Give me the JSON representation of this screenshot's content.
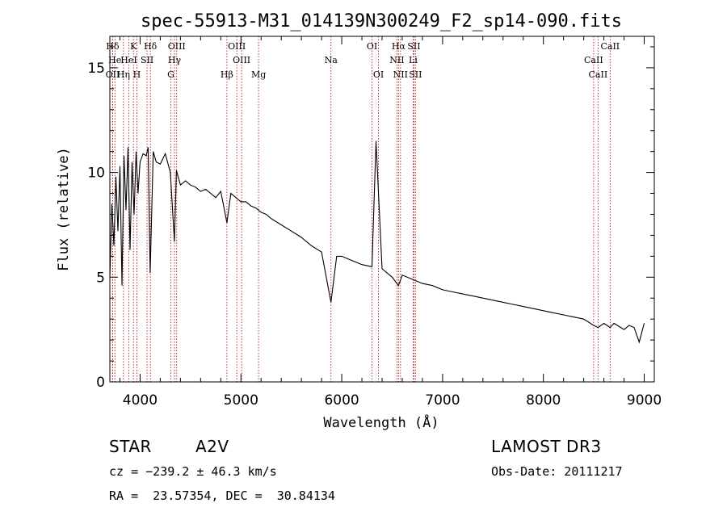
{
  "chart_data": {
    "type": "line",
    "title": "spec-55913-M31_014139N300249_F2_sp14-090.fits",
    "xlabel": "Wavelength (Å)",
    "ylabel": "Flux (relative)",
    "xlim": [
      3700,
      9100
    ],
    "ylim": [
      0,
      16.5
    ],
    "xticks": [
      4000,
      5000,
      6000,
      7000,
      8000,
      9000
    ],
    "yticks": [
      0,
      5,
      10,
      15
    ],
    "grid": false,
    "series": [
      {
        "name": "spectrum",
        "x": [
          3700,
          3720,
          3740,
          3760,
          3780,
          3800,
          3820,
          3840,
          3860,
          3880,
          3900,
          3920,
          3940,
          3960,
          3980,
          4000,
          4030,
          4060,
          4080,
          4100,
          4130,
          4160,
          4200,
          4250,
          4300,
          4340,
          4360,
          4400,
          4450,
          4500,
          4550,
          4600,
          4650,
          4700,
          4750,
          4800,
          4861,
          4900,
          4950,
          5000,
          5050,
          5100,
          5150,
          5200,
          5250,
          5300,
          5400,
          5500,
          5600,
          5700,
          5800,
          5893,
          5950,
          6000,
          6100,
          6200,
          6300,
          6340,
          6400,
          6500,
          6563,
          6600,
          6700,
          6800,
          6900,
          7000,
          7100,
          7200,
          7300,
          7400,
          7500,
          7600,
          7700,
          7800,
          7900,
          8000,
          8100,
          8200,
          8300,
          8400,
          8498,
          8542,
          8600,
          8662,
          8700,
          8800,
          8850,
          8900,
          8950,
          9000
        ],
        "y": [
          5.0,
          8.5,
          6.5,
          9.8,
          7.2,
          10.3,
          4.6,
          10.8,
          8.2,
          11.2,
          6.3,
          10.5,
          8.0,
          11.0,
          9.0,
          10.5,
          10.9,
          10.8,
          11.2,
          5.2,
          11.0,
          10.5,
          10.4,
          10.9,
          10.0,
          6.7,
          10.1,
          9.4,
          9.6,
          9.4,
          9.3,
          9.1,
          9.2,
          9.0,
          8.8,
          9.1,
          7.6,
          9.0,
          8.8,
          8.6,
          8.6,
          8.4,
          8.3,
          8.1,
          8.0,
          7.8,
          7.5,
          7.2,
          6.9,
          6.5,
          6.2,
          3.8,
          6.0,
          6.0,
          5.8,
          5.6,
          5.5,
          11.5,
          5.4,
          5.0,
          4.6,
          5.1,
          4.9,
          4.7,
          4.6,
          4.4,
          4.3,
          4.2,
          4.1,
          4.0,
          3.9,
          3.8,
          3.7,
          3.6,
          3.5,
          3.4,
          3.3,
          3.2,
          3.1,
          3.0,
          2.7,
          2.6,
          2.8,
          2.6,
          2.8,
          2.5,
          2.7,
          2.6,
          1.9,
          2.8
        ]
      }
    ],
    "lines": [
      {
        "label": "Hδ",
        "x": 3727,
        "row": 1
      },
      {
        "label": "OII",
        "x": 3728,
        "row": 3
      },
      {
        "label": "He",
        "x": 3750,
        "row": 2
      },
      {
        "label": "Hη",
        "x": 3835,
        "row": 3
      },
      {
        "label": "K",
        "x": 3934,
        "row": 1
      },
      {
        "label": "HeI",
        "x": 3888,
        "row": 2
      },
      {
        "label": "H",
        "x": 3968,
        "row": 3
      },
      {
        "label": "SII",
        "x": 4069,
        "row": 2
      },
      {
        "label": "Hδ",
        "x": 4102,
        "row": 1
      },
      {
        "label": "OIII",
        "x": 4363,
        "row": 1
      },
      {
        "label": "Hγ",
        "x": 4341,
        "row": 2
      },
      {
        "label": "G",
        "x": 4305,
        "row": 3
      },
      {
        "label": "Hβ",
        "x": 4861,
        "row": 3
      },
      {
        "label": "OIII",
        "x": 4959,
        "row": 1
      },
      {
        "label": "OIII",
        "x": 5007,
        "row": 2
      },
      {
        "label": "Mg",
        "x": 5175,
        "row": 3
      },
      {
        "label": "Na",
        "x": 5893,
        "row": 2
      },
      {
        "label": "OI",
        "x": 6300,
        "row": 1
      },
      {
        "label": "OI",
        "x": 6364,
        "row": 3
      },
      {
        "label": "Hα",
        "x": 6563,
        "row": 1
      },
      {
        "label": "NII",
        "x": 6548,
        "row": 2
      },
      {
        "label": "NII",
        "x": 6583,
        "row": 3
      },
      {
        "label": "SII",
        "x": 6716,
        "row": 1
      },
      {
        "label": "Li",
        "x": 6708,
        "row": 2
      },
      {
        "label": "SII",
        "x": 6731,
        "row": 3
      },
      {
        "label": "CaII",
        "x": 8662,
        "row": 1
      },
      {
        "label": "CaII",
        "x": 8498,
        "row": 2
      },
      {
        "label": "CaII",
        "x": 8542,
        "row": 3
      }
    ]
  },
  "info": {
    "class": "STAR",
    "subclass": "A2V",
    "survey": "LAMOST DR3",
    "cz": "cz = −239.2 ± 46.3 km/s",
    "obs_date": "Obs-Date: 20111217",
    "radec": "RA =  23.57354, DEC =  30.84134"
  }
}
